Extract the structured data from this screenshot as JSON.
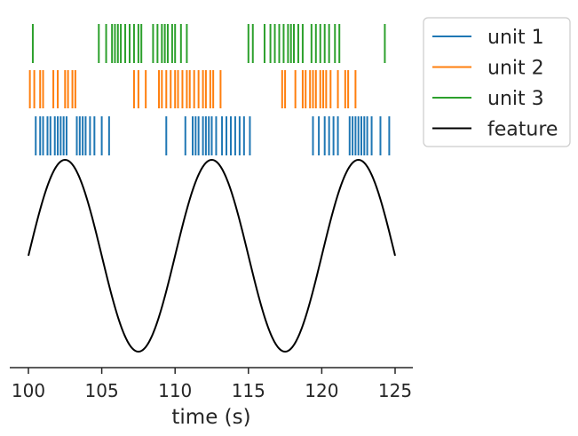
{
  "chart_data": {
    "type": "line",
    "xlabel": "time (s)",
    "xlim": [
      100,
      125
    ],
    "xticks": [
      100,
      105,
      110,
      115,
      120,
      125
    ],
    "feature_amplitude": 1,
    "feature_period_s": 10,
    "legend_position": "top-right-outside",
    "series": [
      {
        "name": "unit 1",
        "kind": "spike-raster",
        "color": "#1f77b4",
        "spike_times": [
          100.5,
          100.8,
          101.0,
          101.3,
          101.5,
          101.8,
          102.0,
          102.2,
          102.4,
          102.6,
          103.3,
          103.5,
          103.7,
          103.9,
          104.2,
          104.5,
          105.0,
          105.5,
          109.4,
          110.7,
          111.2,
          111.4,
          111.6,
          111.9,
          112.1,
          112.3,
          112.5,
          112.8,
          113.2,
          113.5,
          113.8,
          114.1,
          114.4,
          114.7,
          115.1,
          119.4,
          119.8,
          120.2,
          120.5,
          120.8,
          121.1,
          121.9,
          122.1,
          122.3,
          122.5,
          122.7,
          122.9,
          123.1,
          123.4,
          124.0,
          124.6
        ]
      },
      {
        "name": "unit 2",
        "kind": "spike-raster",
        "color": "#ff7f0e",
        "spike_times": [
          100.1,
          100.4,
          100.8,
          101.0,
          101.7,
          102.0,
          102.5,
          102.7,
          103.0,
          103.2,
          107.2,
          107.5,
          108.0,
          108.9,
          109.1,
          109.4,
          109.7,
          110.0,
          110.2,
          110.5,
          110.8,
          111.0,
          111.3,
          111.6,
          111.9,
          112.1,
          112.4,
          112.6,
          113.1,
          117.3,
          117.5,
          118.2,
          118.7,
          118.9,
          119.2,
          119.4,
          119.6,
          119.9,
          120.1,
          120.3,
          120.6,
          121.1,
          121.6,
          121.8,
          122.3
        ]
      },
      {
        "name": "unit 3",
        "kind": "spike-raster",
        "color": "#2ca02c",
        "spike_times": [
          100.3,
          104.8,
          105.3,
          105.7,
          105.9,
          106.1,
          106.3,
          106.6,
          106.9,
          107.2,
          107.5,
          107.7,
          108.5,
          108.8,
          109.1,
          109.3,
          109.5,
          109.8,
          110.0,
          110.4,
          110.8,
          115.0,
          115.3,
          116.1,
          116.5,
          116.8,
          117.1,
          117.4,
          117.7,
          117.9,
          118.1,
          118.4,
          118.7,
          119.3,
          119.6,
          119.9,
          120.2,
          120.5,
          120.9,
          121.2,
          124.3
        ]
      },
      {
        "name": "feature",
        "kind": "line",
        "color": "#000000",
        "function": "sin(2*pi*(t-100)/10)"
      }
    ]
  }
}
